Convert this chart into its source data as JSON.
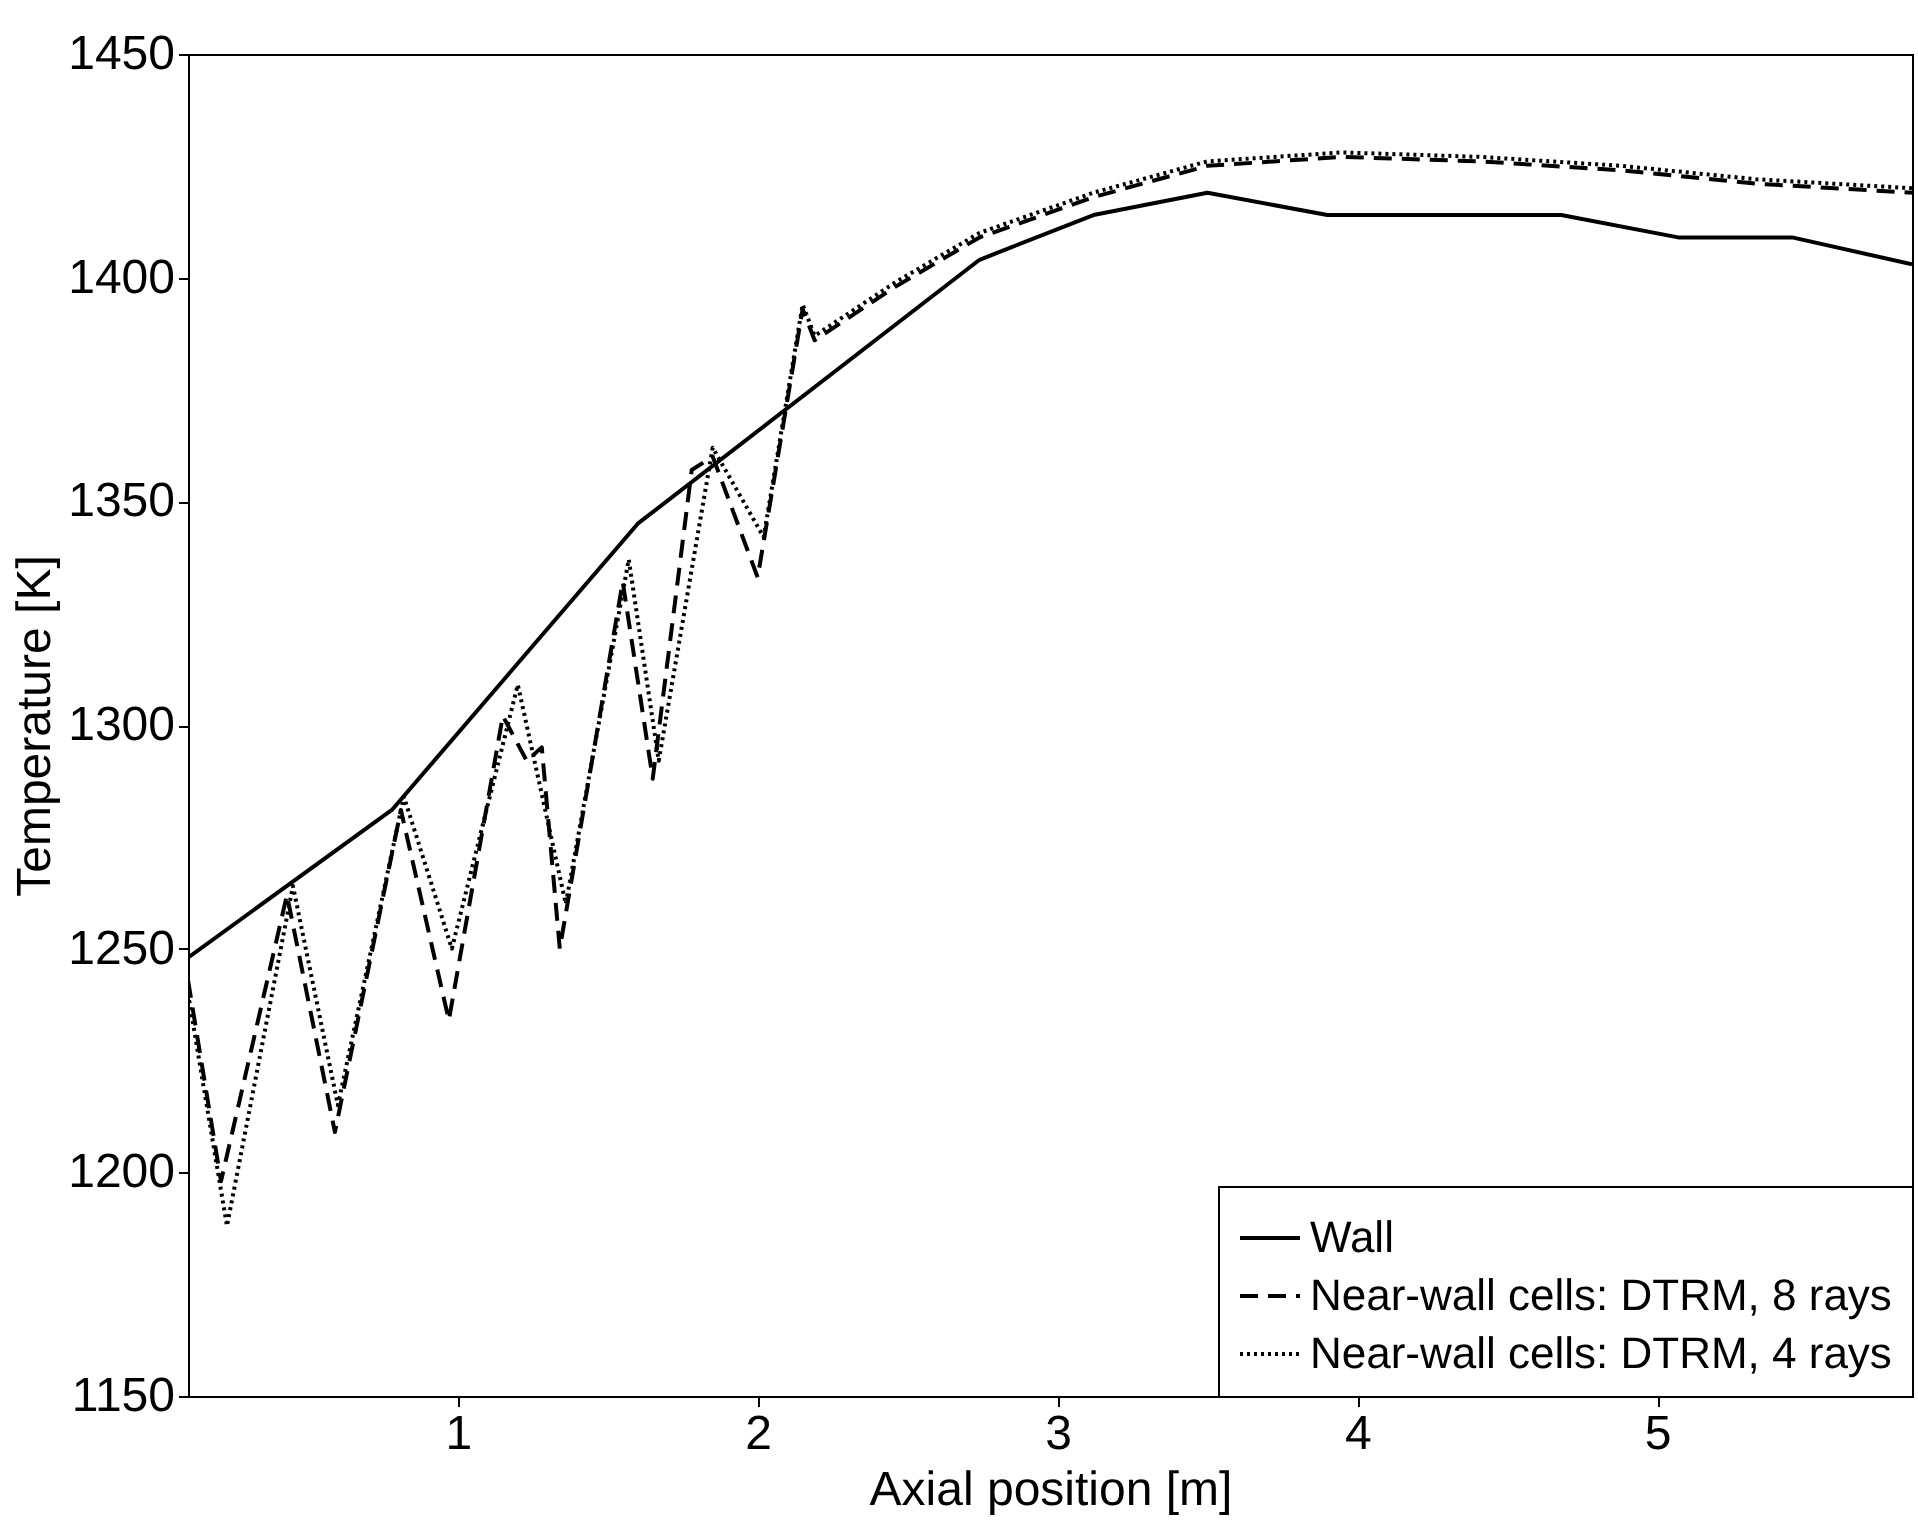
{
  "chart_data": {
    "type": "line",
    "xlabel": "Axial position [m]",
    "ylabel": "Temperature [K]",
    "xlim": [
      0.1,
      5.85
    ],
    "ylim": [
      1150,
      1450
    ],
    "xticks": [
      1,
      2,
      3,
      4,
      5
    ],
    "yticks": [
      1150,
      1200,
      1250,
      1300,
      1350,
      1400,
      1450
    ],
    "grid": false,
    "legend": "bottom right",
    "marker": "none",
    "series": [
      {
        "name": "Wall",
        "color": "#000000",
        "line_style": "solid",
        "x": [
          0.1,
          0.78,
          1.6,
          2.74,
          3.12,
          3.5,
          3.9,
          4.68,
          5.07,
          5.45,
          5.85
        ],
        "values": [
          1248,
          1281,
          1345,
          1404,
          1414,
          1419,
          1414,
          1414,
          1409,
          1409,
          1403
        ]
      },
      {
        "name": "Near-wall cells: DTRM, 8 rays",
        "color": "#000000",
        "line_style": "dashed",
        "x": [
          0.1,
          0.21,
          0.43,
          0.59,
          0.81,
          0.97,
          1.15,
          1.23,
          1.28,
          1.34,
          1.55,
          1.65,
          1.78,
          1.85,
          2.0,
          2.15,
          2.19,
          2.46,
          2.74,
          3.12,
          3.5,
          3.95,
          4.41,
          4.88,
          5.33,
          5.85
        ],
        "values": [
          1243,
          1198,
          1262,
          1209,
          1281,
          1234,
          1302,
          1292,
          1295,
          1250,
          1332,
          1288,
          1357,
          1360,
          1333,
          1393,
          1386,
          1398,
          1409,
          1418,
          1425,
          1427,
          1426,
          1424,
          1421,
          1419
        ]
      },
      {
        "name": "Near-wall cells: DTRM, 4 rays",
        "color": "#000000",
        "line_style": "dotted",
        "x": [
          0.1,
          0.23,
          0.45,
          0.6,
          0.82,
          0.98,
          1.2,
          1.36,
          1.57,
          1.67,
          1.85,
          2.02,
          2.15,
          2.19,
          2.46,
          2.74,
          3.12,
          3.5,
          3.95,
          4.41,
          4.88,
          5.33,
          5.85
        ],
        "values": [
          1240,
          1188,
          1264,
          1215,
          1284,
          1250,
          1309,
          1260,
          1337,
          1292,
          1362,
          1342,
          1394,
          1387,
          1399,
          1410,
          1419,
          1426,
          1428,
          1427,
          1425,
          1422,
          1420
        ]
      }
    ]
  }
}
